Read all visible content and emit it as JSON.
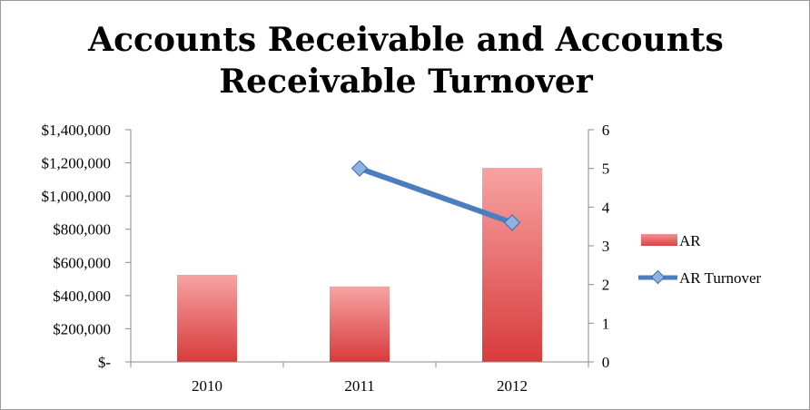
{
  "chart_data": {
    "type": "bar",
    "title_lines": [
      "Accounts Receivable and Accounts",
      "Receivable Turnover"
    ],
    "categories": [
      "2010",
      "2011",
      "2012"
    ],
    "series": [
      {
        "name": "AR",
        "type": "bar",
        "axis": "left",
        "values": [
          525000,
          455000,
          1170000
        ],
        "color": "#e15252"
      },
      {
        "name": "AR Turnover",
        "type": "line",
        "axis": "right",
        "values": [
          null,
          5.0,
          3.6
        ],
        "color": "#4a7ebf"
      }
    ],
    "ylim_left": [
      0,
      1400000
    ],
    "yticks_left": [
      "$-",
      "$200,000",
      "$400,000",
      "$600,000",
      "$800,000",
      "$1,000,000",
      "$1,200,000",
      "$1,400,000"
    ],
    "ylim_right": [
      0,
      6
    ],
    "yticks_right": [
      "0",
      "1",
      "2",
      "3",
      "4",
      "5",
      "6"
    ],
    "legend_position": "right",
    "grid": false
  }
}
